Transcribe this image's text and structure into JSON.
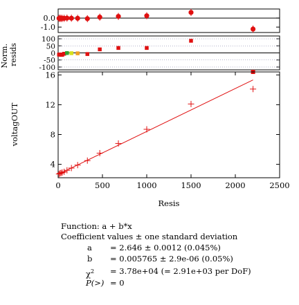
{
  "chart_data": [
    {
      "id": "residuals-top",
      "type": "scatter",
      "xlim": [
        0,
        2500
      ],
      "ylim": [
        -1.6,
        1.0
      ],
      "yticks": [
        "0.0",
        "-1.0"
      ],
      "ytick_values": [
        0.0,
        -1.0
      ],
      "color": "#e01010",
      "points": [
        {
          "x": 10,
          "y": -0.03
        },
        {
          "x": 22,
          "y": -0.03
        },
        {
          "x": 33,
          "y": -0.04
        },
        {
          "x": 47,
          "y": -0.04
        },
        {
          "x": 68,
          "y": -0.03
        },
        {
          "x": 100,
          "y": -0.01
        },
        {
          "x": 150,
          "y": -0.02
        },
        {
          "x": 220,
          "y": -0.03
        },
        {
          "x": 330,
          "y": -0.07
        },
        {
          "x": 470,
          "y": 0.1
        },
        {
          "x": 680,
          "y": 0.18
        },
        {
          "x": 1000,
          "y": 0.25
        },
        {
          "x": 1500,
          "y": 0.62
        },
        {
          "x": 2200,
          "y": -1.22
        }
      ]
    },
    {
      "id": "residuals-normalized",
      "type": "scatter",
      "ylabel": "Norm.\nresids",
      "xlim": [
        0,
        2500
      ],
      "ylim": [
        -120,
        120
      ],
      "yticks": [
        "100",
        "50",
        "0",
        "-50",
        "-100"
      ],
      "ytick_values": [
        100,
        50,
        0,
        -50,
        -100
      ],
      "points": [
        {
          "x": 10,
          "y": -12,
          "color": "#e01010"
        },
        {
          "x": 22,
          "y": -11,
          "color": "#e01010"
        },
        {
          "x": 33,
          "y": -14,
          "color": "#e01010"
        },
        {
          "x": 47,
          "y": -13,
          "color": "#e01010"
        },
        {
          "x": 68,
          "y": -6,
          "color": "#e01010"
        },
        {
          "x": 100,
          "y": -1,
          "color": "#2fa52f"
        },
        {
          "x": 150,
          "y": -2,
          "color": "#d7e21c"
        },
        {
          "x": 220,
          "y": -3,
          "color": "#f0a020"
        },
        {
          "x": 330,
          "y": -8,
          "color": "#e01010"
        },
        {
          "x": 470,
          "y": 25,
          "color": "#e01010"
        },
        {
          "x": 680,
          "y": 35,
          "color": "#e01010"
        },
        {
          "x": 1000,
          "y": 35,
          "color": "#e01010"
        },
        {
          "x": 1500,
          "y": 86,
          "color": "#e01010"
        },
        {
          "x": 2200,
          "y": -125,
          "color": "#e01010"
        }
      ]
    },
    {
      "id": "main-fit",
      "type": "scatter",
      "xlabel": "Resis",
      "ylabel": "voltagOUT",
      "xlim": [
        0,
        2500
      ],
      "ylim": [
        2.2,
        16.4
      ],
      "xticks": [
        "0",
        "500",
        "1000",
        "1500",
        "2000",
        "2500"
      ],
      "xtick_values": [
        0,
        500,
        1000,
        1500,
        2000,
        2500
      ],
      "yticks": [
        "16",
        "12",
        "8",
        "4"
      ],
      "ytick_values": [
        16,
        12,
        8,
        4
      ],
      "fit_line": {
        "a": 2.646,
        "b": 0.005765,
        "x_range": [
          0,
          2200
        ],
        "color": "#e01010"
      },
      "points": [
        {
          "x": 10,
          "y": 2.7
        },
        {
          "x": 22,
          "y": 2.8
        },
        {
          "x": 33,
          "y": 2.85
        },
        {
          "x": 47,
          "y": 2.9
        },
        {
          "x": 68,
          "y": 3.0
        },
        {
          "x": 100,
          "y": 3.2
        },
        {
          "x": 150,
          "y": 3.5
        },
        {
          "x": 220,
          "y": 3.9
        },
        {
          "x": 330,
          "y": 4.5
        },
        {
          "x": 470,
          "y": 5.5
        },
        {
          "x": 680,
          "y": 6.8
        },
        {
          "x": 1000,
          "y": 8.7
        },
        {
          "x": 1500,
          "y": 12.1
        },
        {
          "x": 2200,
          "y": 14.1
        }
      ]
    }
  ],
  "fit": {
    "function_label": "Function: a + b*x",
    "coeff_label": "Coefficient values ± one standard deviation",
    "params": [
      {
        "name": "a",
        "value": "= 2.646 ± 0.0012  (0.045%)"
      },
      {
        "name": "b",
        "value": "= 0.005765 ± 2.9e-06  (0.05%)"
      }
    ],
    "chi_symbol": "χ",
    "chi_power": "2",
    "chi_value": "= 3.78e+04 (= 2.91e+03 per DoF)",
    "p_label": "P(>)",
    "p_value": "= 0"
  }
}
